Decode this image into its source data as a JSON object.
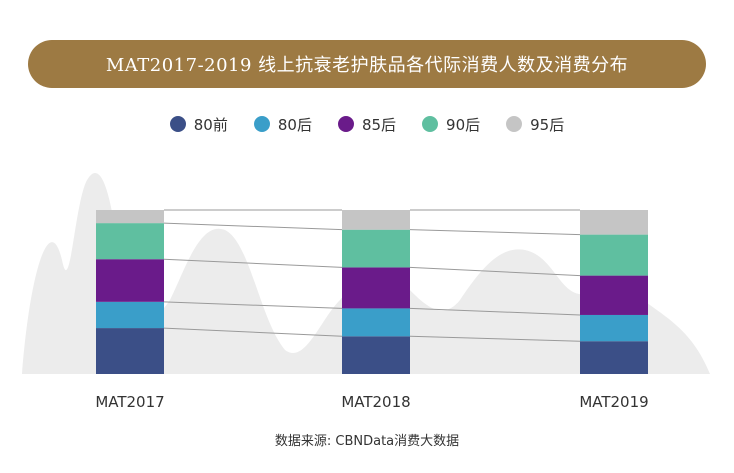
{
  "chart_data": {
    "type": "bar",
    "stacked": true,
    "normalized": true,
    "title": "MAT2017-2019 线上抗衰老护肤品各代际消费人数及消费分布",
    "categories": [
      "MAT2017",
      "MAT2018",
      "MAT2019"
    ],
    "series": [
      {
        "name": "80前",
        "color": "#3b4f87",
        "values": [
          0.28,
          0.23,
          0.2
        ]
      },
      {
        "name": "80后",
        "color": "#3a9ec9",
        "values": [
          0.16,
          0.17,
          0.16
        ]
      },
      {
        "name": "85后",
        "color": "#6a1b8a",
        "values": [
          0.26,
          0.25,
          0.24
        ]
      },
      {
        "name": "90后",
        "color": "#5fbfa0",
        "values": [
          0.22,
          0.23,
          0.25
        ]
      },
      {
        "name": "95后",
        "color": "#c5c5c5",
        "values": [
          0.08,
          0.12,
          0.15
        ]
      }
    ],
    "legend_position": "top",
    "ylim": [
      0,
      1
    ],
    "grid": false,
    "source": "数据来源: CBNData消费大数据"
  },
  "colors": {
    "title_bar": "#9d7a43",
    "background_mountains": "#ececec",
    "connector_lines": "#9a9a9a"
  }
}
